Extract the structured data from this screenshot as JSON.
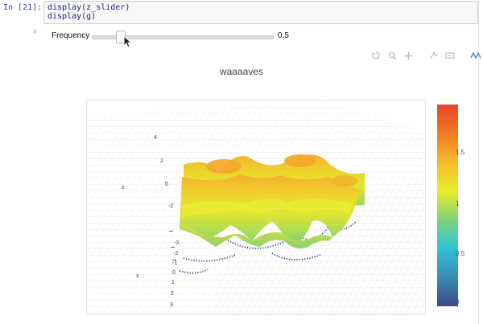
{
  "cell": {
    "prompt": "In [21]:",
    "lines": [
      "display(z_slider)",
      "display(g)"
    ]
  },
  "slider": {
    "close_glyph": "×",
    "label": "Frequency",
    "value": 0.5,
    "value_text": "0.5",
    "min": 0,
    "max": 2
  },
  "toolbar": {
    "icons": [
      "reset-camera-icon",
      "zoom-icon",
      "pan-icon",
      "orbit-icon",
      "turntable-icon",
      "plotly-logo-icon",
      "bar-chart-icon"
    ]
  },
  "plot": {
    "title": "waaaaves",
    "z_axis": {
      "title": "z",
      "ticks": [
        "4",
        "2",
        "0",
        "-2"
      ]
    },
    "x_axis": {
      "title": "x",
      "ticks": [
        "-3",
        "-2",
        "-1",
        "0",
        "1",
        "2",
        "3"
      ]
    }
  },
  "colorbar": {
    "ticks": [
      "1.5",
      "1",
      "0.5",
      "0"
    ],
    "colors": [
      "#e8452b",
      "#ee7a20",
      "#f7bb2a",
      "#eaeb2a",
      "#7ed47a",
      "#2fc3d7",
      "#3a8bb6",
      "#3e4b86"
    ]
  }
}
